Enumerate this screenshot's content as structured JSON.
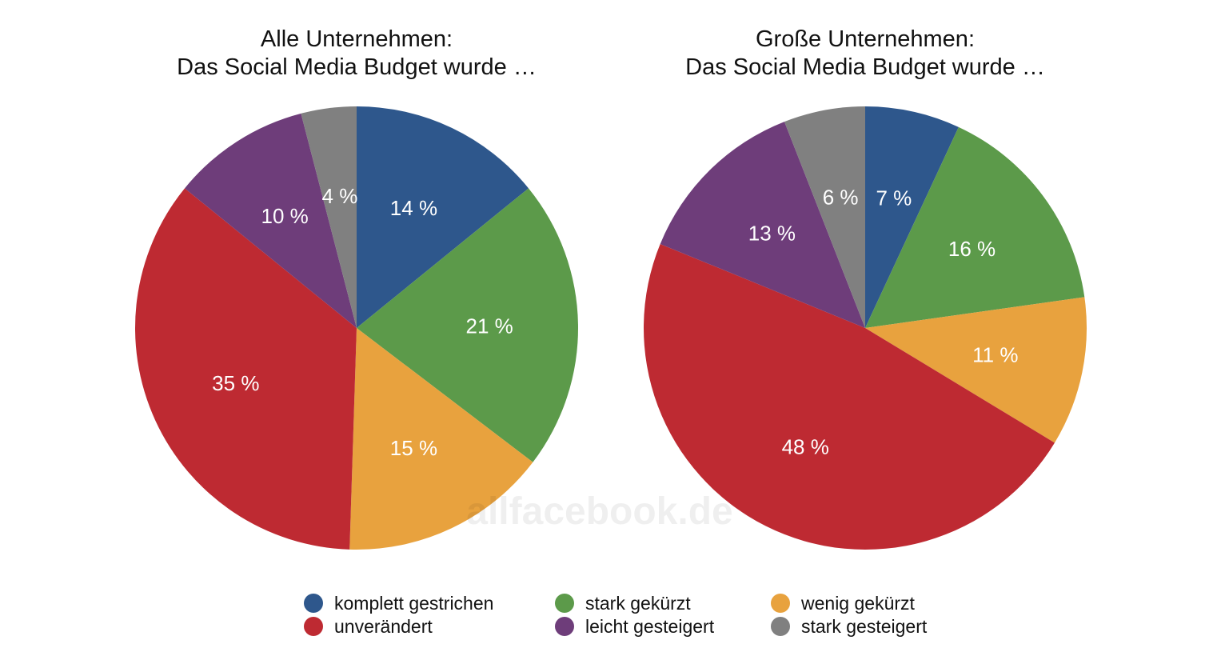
{
  "watermark": "allfacebook.de",
  "chart_data": [
    {
      "type": "pie",
      "title_lines": [
        "Alle Unternehmen:",
        "Das Social Media Budget wurde …"
      ],
      "slices": [
        {
          "label": "komplett gestrichen",
          "value": 14,
          "text": "14 %",
          "color": "#2E578C"
        },
        {
          "label": "stark gekürzt",
          "value": 21,
          "text": "21 %",
          "color": "#5C9A4A"
        },
        {
          "label": "wenig gekürzt",
          "value": 15,
          "text": "15 %",
          "color": "#E8A23E"
        },
        {
          "label": "unverändert",
          "value": 35,
          "text": "35 %",
          "color": "#BE2A32"
        },
        {
          "label": "leicht gesteigert",
          "value": 10,
          "text": "10 %",
          "color": "#6E3D7A"
        },
        {
          "label": "stark gesteigert",
          "value": 4,
          "text": "4 %",
          "color": "#808080"
        }
      ]
    },
    {
      "type": "pie",
      "title_lines": [
        "Große Unternehmen:",
        "Das Social Media Budget wurde …"
      ],
      "slices": [
        {
          "label": "komplett gestrichen",
          "value": 7,
          "text": "7 %",
          "color": "#2E578C"
        },
        {
          "label": "stark gekürzt",
          "value": 16,
          "text": "16 %",
          "color": "#5C9A4A"
        },
        {
          "label": "wenig gekürzt",
          "value": 11,
          "text": "11 %",
          "color": "#E8A23E"
        },
        {
          "label": "unverändert",
          "value": 48,
          "text": "48 %",
          "color": "#BE2A32"
        },
        {
          "label": "leicht gesteigert",
          "value": 13,
          "text": "13 %",
          "color": "#6E3D7A"
        },
        {
          "label": "stark gesteigert",
          "value": 6,
          "text": "6 %",
          "color": "#808080"
        }
      ]
    }
  ],
  "legend": {
    "position": "bottom",
    "items": [
      {
        "label": "komplett gestrichen",
        "color": "#2E578C"
      },
      {
        "label": "stark gekürzt",
        "color": "#5C9A4A"
      },
      {
        "label": "wenig gekürzt",
        "color": "#E8A23E"
      },
      {
        "label": "unverändert",
        "color": "#BE2A32"
      },
      {
        "label": "leicht gesteigert",
        "color": "#6E3D7A"
      },
      {
        "label": "stark gesteigert",
        "color": "#808080"
      }
    ]
  }
}
